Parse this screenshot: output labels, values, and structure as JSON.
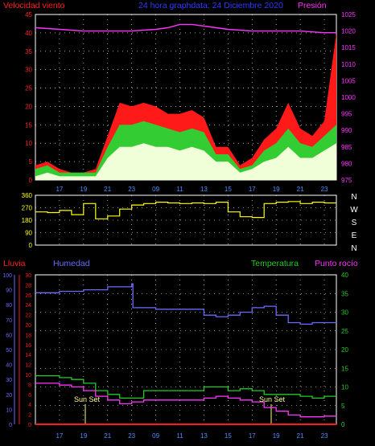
{
  "header": {
    "left_label": "Velocidad viento",
    "center_label": "24 hora graphdata: 24 Diciembre  2020",
    "right_label": "Presión"
  },
  "colors": {
    "background": "#000000",
    "grid": "#ffffff",
    "wind_axis": "#ff2020",
    "pressure_axis": "#ff33ff",
    "title": "#2f3bff",
    "gust": "#ff1a1a",
    "avg_wind": "#33cc33",
    "wind_low": "#f0ffd8",
    "direction": "#ffff00",
    "rain": "#ff1a1a",
    "humidity": "#6a6aff",
    "temperature": "#22cc22",
    "dewpoint": "#ff33ff",
    "sunset": "#ffff88"
  },
  "sunset_label": "Sun Set",
  "bottom_legend": {
    "rain": "Lluvia",
    "humidity": "Humedad",
    "temperature": "Temperatura",
    "dewpoint": "Punto rocío"
  },
  "chart_data": [
    {
      "type": "line",
      "title": "",
      "panel": "wind-speed-and-pressure",
      "x_tick_labels": [
        "17",
        "19",
        "21",
        "23",
        "09",
        "11",
        "13",
        "15",
        "17",
        "19",
        "21",
        "23"
      ],
      "x_range_hours": [
        0,
        25
      ],
      "y_left": {
        "label": "Velocidad viento",
        "range": [
          0,
          45
        ],
        "ticks": [
          0,
          5,
          10,
          15,
          20,
          25,
          30,
          35,
          40,
          45
        ]
      },
      "y_right": {
        "label": "Presión",
        "range": [
          975,
          1025
        ],
        "ticks": [
          975,
          980,
          985,
          990,
          995,
          1000,
          1005,
          1010,
          1015,
          1020,
          1025
        ]
      },
      "series": [
        {
          "name": "Presión",
          "axis": "right",
          "color": "#ff33ff",
          "x": [
            0,
            2,
            4,
            6,
            8,
            10,
            11,
            12,
            13,
            14,
            15,
            16,
            18,
            20,
            22,
            24,
            25
          ],
          "y": [
            1021,
            1020.5,
            1020,
            1020,
            1020,
            1020.5,
            1021,
            1022,
            1022,
            1021.5,
            1021,
            1020.5,
            1020,
            1020,
            1020,
            1019.5,
            1019.5
          ]
        },
        {
          "name": "gust",
          "axis": "left",
          "color": "#ff1a1a",
          "x": [
            0,
            1,
            2,
            3,
            4,
            5,
            6,
            7,
            8,
            9,
            10,
            11,
            12,
            13,
            14,
            15,
            16,
            17,
            18,
            19,
            20,
            21,
            22,
            23,
            24,
            25
          ],
          "y": [
            4,
            5,
            3,
            2,
            2,
            3,
            12,
            21,
            20,
            21,
            20,
            18,
            18,
            19,
            17,
            9,
            9,
            4,
            6,
            11,
            14,
            21,
            14,
            12,
            16,
            40
          ]
        },
        {
          "name": "average",
          "axis": "left",
          "color": "#33cc33",
          "x": [
            0,
            1,
            2,
            3,
            4,
            5,
            6,
            7,
            8,
            9,
            10,
            11,
            12,
            13,
            14,
            15,
            16,
            17,
            18,
            19,
            20,
            21,
            22,
            23,
            24,
            25
          ],
          "y": [
            3,
            4,
            2,
            2,
            2,
            2,
            9,
            15,
            15,
            16,
            15,
            14,
            13,
            14,
            13,
            7,
            7,
            3,
            4,
            8,
            10,
            14,
            10,
            9,
            12,
            15
          ]
        },
        {
          "name": "low",
          "axis": "left",
          "color": "#f0ffd8",
          "x": [
            0,
            1,
            2,
            3,
            4,
            5,
            6,
            7,
            8,
            9,
            10,
            11,
            12,
            13,
            14,
            15,
            16,
            17,
            18,
            19,
            20,
            21,
            22,
            23,
            24,
            25
          ],
          "y": [
            1,
            2,
            1,
            1,
            1,
            1,
            6,
            9,
            9,
            10,
            9,
            9,
            8,
            9,
            8,
            5,
            5,
            2,
            3,
            5,
            6,
            9,
            6,
            6,
            8,
            10
          ]
        }
      ]
    },
    {
      "type": "line",
      "title": "",
      "panel": "wind-direction",
      "y_left": {
        "label": "",
        "range": [
          0,
          360
        ],
        "ticks": [
          0,
          90,
          180,
          270,
          360
        ]
      },
      "y_right_labels": [
        "N",
        "W",
        "S",
        "E",
        "N"
      ],
      "series": [
        {
          "name": "direction",
          "axis": "left",
          "color": "#ffff00",
          "x": [
            0,
            1,
            2,
            3,
            4,
            5,
            6,
            7,
            8,
            9,
            10,
            11,
            12,
            13,
            14,
            15,
            16,
            17,
            18,
            19,
            20,
            21,
            22,
            23,
            24,
            25
          ],
          "y": [
            240,
            235,
            250,
            220,
            300,
            190,
            210,
            260,
            290,
            300,
            310,
            305,
            300,
            305,
            300,
            310,
            240,
            205,
            200,
            300,
            310,
            315,
            300,
            310,
            305,
            305
          ]
        }
      ]
    },
    {
      "type": "line",
      "title": "",
      "panel": "humidity-temperature-rain",
      "x_tick_labels": [
        "17",
        "19",
        "21",
        "23",
        "09",
        "11",
        "13",
        "15",
        "17",
        "19",
        "21",
        "23"
      ],
      "x_range_hours": [
        0,
        25
      ],
      "y_left_outer": {
        "label": "Lluvia",
        "range": [
          0,
          30
        ],
        "ticks": [
          0,
          2,
          4,
          6,
          8,
          10,
          12,
          14,
          16,
          18,
          20,
          22,
          24,
          26,
          28,
          30
        ]
      },
      "y_left_inner": {
        "label": "Humedad",
        "range": [
          0,
          100
        ],
        "ticks": [
          0,
          10,
          20,
          30,
          40,
          50,
          60,
          70,
          80,
          90,
          100
        ]
      },
      "y_right": {
        "label": "Temperatura",
        "range": [
          0,
          40
        ],
        "ticks": [
          0,
          5,
          10,
          15,
          20,
          25,
          30,
          35,
          40
        ]
      },
      "series": [
        {
          "name": "Humedad",
          "axis": "inner-left",
          "color": "#6a6aff",
          "x": [
            0,
            2,
            4,
            6,
            8,
            8.1,
            10,
            12,
            14,
            15,
            16,
            17,
            18,
            19,
            20,
            21,
            22,
            23,
            25
          ],
          "y": [
            88,
            89,
            90,
            92,
            94,
            78,
            77,
            77,
            73,
            72,
            73,
            75,
            78,
            79,
            73,
            68,
            67,
            68,
            68
          ]
        },
        {
          "name": "Temperatura",
          "axis": "right",
          "color": "#22cc22",
          "x": [
            0,
            1,
            2,
            3,
            4,
            5,
            6,
            7,
            8,
            9,
            10,
            11,
            12,
            13,
            14,
            15,
            16,
            17,
            18,
            19,
            20,
            21,
            22,
            23,
            24,
            25
          ],
          "y": [
            13,
            13,
            12.5,
            12,
            11,
            9,
            8,
            7,
            7,
            9,
            9,
            9,
            9,
            9,
            10,
            10,
            9,
            9.5,
            9,
            8,
            8,
            8,
            7.5,
            7,
            7.5,
            7.5
          ]
        },
        {
          "name": "Punto rocío",
          "axis": "right",
          "color": "#ff33ff",
          "x": [
            0,
            1,
            2,
            3,
            4,
            5,
            6,
            7,
            8,
            9,
            10,
            11,
            12,
            13,
            14,
            15,
            16,
            17,
            18,
            19,
            20,
            21,
            22,
            23,
            24,
            25
          ],
          "y": [
            11,
            11,
            10.5,
            10,
            9,
            7.5,
            6.5,
            5.5,
            6,
            6.5,
            6.5,
            6.5,
            6.5,
            6.5,
            7,
            7.5,
            7,
            6.5,
            6,
            4.5,
            3.5,
            2.5,
            2,
            2,
            2.2,
            2.2
          ]
        },
        {
          "name": "Lluvia",
          "axis": "outer-left",
          "color": "#ff1a1a",
          "x": [
            0,
            25
          ],
          "y": [
            0,
            0
          ]
        }
      ]
    }
  ]
}
